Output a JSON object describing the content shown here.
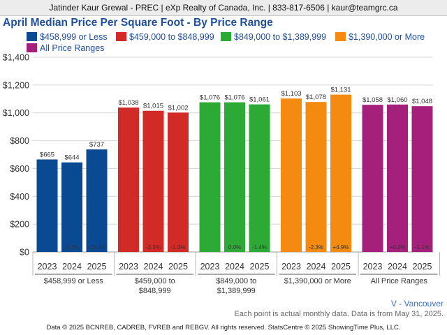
{
  "header": {
    "text": "Jatinder Kaur Grewal - PREC | eXp Realty of Canada, Inc. | 833-817-6506 | kaur@teamgrc.ca"
  },
  "chart_data": {
    "type": "bar",
    "title": "April Median Price Per Square Foot - By Price Range",
    "xlabel": "",
    "ylabel": "",
    "ylim": [
      0,
      1400
    ],
    "yticks": [
      0,
      200,
      400,
      600,
      800,
      1000,
      1200,
      1400
    ],
    "ytick_labels": [
      "$0",
      "$200",
      "$400",
      "$600",
      "$800",
      "$1,000",
      "$1,200",
      "$1,400"
    ],
    "grid": true,
    "legend_position": "top",
    "years": [
      "2023",
      "2024",
      "2025"
    ],
    "groups": [
      {
        "name": "$458,999 or Less",
        "label_lines": [
          "$458,999 or Less"
        ],
        "color": "#0a4a93",
        "values": [
          665,
          644,
          737
        ],
        "value_labels": [
          "$665",
          "$644",
          "$737"
        ],
        "change_labels": [
          "",
          "-3.2%",
          "+14.4%"
        ]
      },
      {
        "name": "$459,000 to $848,999",
        "label_lines": [
          "$459,000 to",
          "$848,999"
        ],
        "color": "#d22a26",
        "values": [
          1038,
          1015,
          1002
        ],
        "value_labels": [
          "$1,038",
          "$1,015",
          "$1,002"
        ],
        "change_labels": [
          "",
          "-2.2%",
          "-1.3%"
        ]
      },
      {
        "name": "$849,000 to $1,389,999",
        "label_lines": [
          "$849,000 to",
          "$1,389,999"
        ],
        "color": "#2daa36",
        "values": [
          1076,
          1076,
          1061
        ],
        "value_labels": [
          "$1,076",
          "$1,076",
          "$1,061"
        ],
        "change_labels": [
          "",
          "0.0%",
          "-1.4%"
        ]
      },
      {
        "name": "$1,390,000 or More",
        "label_lines": [
          "$1,390,000 or More"
        ],
        "color": "#f58a11",
        "values": [
          1103,
          1078,
          1131
        ],
        "value_labels": [
          "$1,103",
          "$1,078",
          "$1,131"
        ],
        "change_labels": [
          "",
          "-2.3%",
          "+4.9%"
        ]
      },
      {
        "name": "All Price Ranges",
        "label_lines": [
          "All Price Ranges"
        ],
        "color": "#a5207a",
        "values": [
          1058,
          1060,
          1048
        ],
        "value_labels": [
          "$1,058",
          "$1,060",
          "$1,048"
        ],
        "change_labels": [
          "",
          "+0.2%",
          "-1.1%"
        ]
      }
    ]
  },
  "legend": {
    "items": [
      {
        "label": "$458,999 or Less",
        "color": "#0a4a93"
      },
      {
        "label": "$459,000 to $848,999",
        "color": "#d22a26"
      },
      {
        "label": "$849,000 to $1,389,999",
        "color": "#2daa36"
      },
      {
        "label": "$1,390,000 or More",
        "color": "#f58a11"
      },
      {
        "label": "All Price Ranges",
        "color": "#a5207a"
      }
    ]
  },
  "region": "V - Vancouver",
  "note": "Each point is actual monthly data. Data is from May 31, 2025.",
  "footer": "Data © 2025 BCNREB, CADREB, FVREB and REBGV. All rights reserved. StatsCentre © 2025 ShowingTime Plus, LLC."
}
